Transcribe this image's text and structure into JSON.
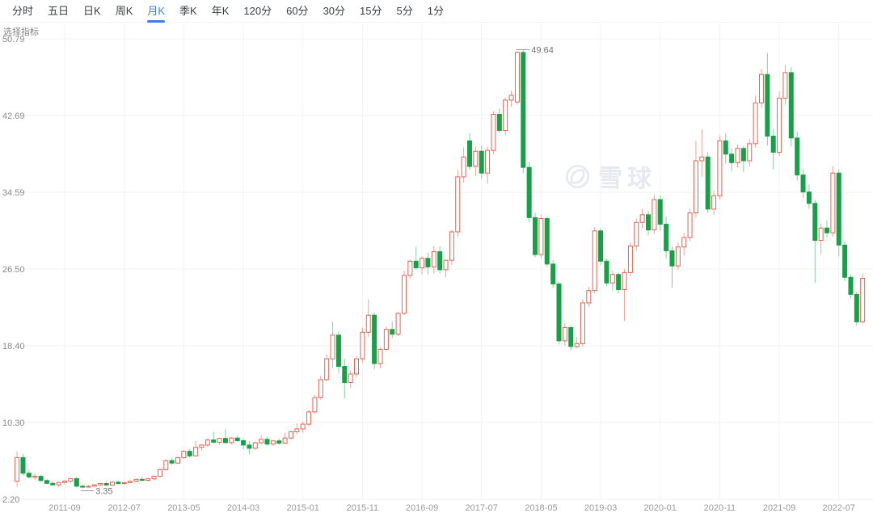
{
  "toolbar": {
    "items": [
      {
        "label": "分时",
        "active": false
      },
      {
        "label": "五日",
        "active": false
      },
      {
        "label": "日K",
        "active": false
      },
      {
        "label": "周K",
        "active": false
      },
      {
        "label": "月K",
        "active": true
      },
      {
        "label": "季K",
        "active": false
      },
      {
        "label": "年K",
        "active": false
      },
      {
        "label": "120分",
        "active": false
      },
      {
        "label": "60分",
        "active": false
      },
      {
        "label": "30分",
        "active": false
      },
      {
        "label": "15分",
        "active": false
      },
      {
        "label": "5分",
        "active": false
      },
      {
        "label": "1分",
        "active": false
      }
    ],
    "active_color": "#3d7bf0"
  },
  "indicator_label": "选择指标",
  "watermark": {
    "text": "雪球"
  },
  "chart_data": {
    "type": "candlestick",
    "period": "monthly",
    "y_ticks": [
      "50.79",
      "42.69",
      "34.59",
      "26.50",
      "18.40",
      "10.30",
      "2.20"
    ],
    "x_ticks": [
      {
        "index": 8,
        "label": "2011-09"
      },
      {
        "index": 18,
        "label": "2012-07"
      },
      {
        "index": 28,
        "label": "2013-05"
      },
      {
        "index": 38,
        "label": "2014-03"
      },
      {
        "index": 48,
        "label": "2015-01"
      },
      {
        "index": 58,
        "label": "2015-11"
      },
      {
        "index": 68,
        "label": "2016-09"
      },
      {
        "index": 78,
        "label": "2017-07"
      },
      {
        "index": 88,
        "label": "2018-05"
      },
      {
        "index": 98,
        "label": "2019-03"
      },
      {
        "index": 108,
        "label": "2020-01"
      },
      {
        "index": 118,
        "label": "2020-11"
      },
      {
        "index": 128,
        "label": "2021-09"
      },
      {
        "index": 138,
        "label": "2022-07"
      }
    ],
    "start_month": "2011-01",
    "annotations": {
      "high": "49.64",
      "low": "3.35"
    },
    "colors": {
      "up": "#e8604f",
      "up_wick": "#f2a096",
      "down": "#16a148",
      "down_wick": "#85cfa2",
      "grid": "#f2f2f2",
      "axis_text": "#8c8c8c",
      "annotation_text": "#737373"
    },
    "candles": [
      [
        4.1,
        7.25,
        3.5,
        6.6
      ],
      [
        6.6,
        6.95,
        4.7,
        4.95
      ],
      [
        4.95,
        5.35,
        4.4,
        4.55
      ],
      [
        4.55,
        4.95,
        4.25,
        4.62
      ],
      [
        4.62,
        4.8,
        4.05,
        4.18
      ],
      [
        4.18,
        4.35,
        3.78,
        3.88
      ],
      [
        3.88,
        4.12,
        3.62,
        3.72
      ],
      [
        3.72,
        4.05,
        3.48,
        3.97
      ],
      [
        3.97,
        4.22,
        3.72,
        4.12
      ],
      [
        4.12,
        4.48,
        3.92,
        4.38
      ],
      [
        4.38,
        4.52,
        3.48,
        3.58
      ],
      [
        3.58,
        3.76,
        3.35,
        3.52
      ],
      [
        3.52,
        3.7,
        3.42,
        3.58
      ],
      [
        3.58,
        3.82,
        3.46,
        3.72
      ],
      [
        3.72,
        3.96,
        3.56,
        3.86
      ],
      [
        3.86,
        4.06,
        3.62,
        3.7
      ],
      [
        3.7,
        4.1,
        3.6,
        4.0
      ],
      [
        4.0,
        4.16,
        3.76,
        3.86
      ],
      [
        3.86,
        4.06,
        3.72,
        3.96
      ],
      [
        3.96,
        4.2,
        3.86,
        4.1
      ],
      [
        4.1,
        4.4,
        4.0,
        4.3
      ],
      [
        4.3,
        4.56,
        4.1,
        4.2
      ],
      [
        4.2,
        4.46,
        4.06,
        4.36
      ],
      [
        4.36,
        4.72,
        4.22,
        4.62
      ],
      [
        4.62,
        5.48,
        4.52,
        5.32
      ],
      [
        5.32,
        6.42,
        5.22,
        6.28
      ],
      [
        6.28,
        6.52,
        5.82,
        6.02
      ],
      [
        6.02,
        6.72,
        5.92,
        6.58
      ],
      [
        6.58,
        7.42,
        6.48,
        7.26
      ],
      [
        7.26,
        7.48,
        6.62,
        6.78
      ],
      [
        6.78,
        8.32,
        6.72,
        7.68
      ],
      [
        7.68,
        8.02,
        7.32,
        7.92
      ],
      [
        7.92,
        8.62,
        7.72,
        8.46
      ],
      [
        8.46,
        9.32,
        8.12,
        8.22
      ],
      [
        8.22,
        8.72,
        7.92,
        8.62
      ],
      [
        8.62,
        9.62,
        8.02,
        8.18
      ],
      [
        8.18,
        8.78,
        7.98,
        8.66
      ],
      [
        8.66,
        8.92,
        8.22,
        8.38
      ],
      [
        8.38,
        8.62,
        7.42,
        7.92
      ],
      [
        7.92,
        8.32,
        6.95,
        7.58
      ],
      [
        7.58,
        8.26,
        7.42,
        8.16
      ],
      [
        8.16,
        8.92,
        8.02,
        8.52
      ],
      [
        8.52,
        8.76,
        7.86,
        8.02
      ],
      [
        8.02,
        8.46,
        7.82,
        8.36
      ],
      [
        8.36,
        8.62,
        7.96,
        8.12
      ],
      [
        8.12,
        9.22,
        8.02,
        8.66
      ],
      [
        8.66,
        9.42,
        8.52,
        9.32
      ],
      [
        9.32,
        10.22,
        9.02,
        9.62
      ],
      [
        9.62,
        10.42,
        9.22,
        10.12
      ],
      [
        10.12,
        11.62,
        9.92,
        11.42
      ],
      [
        11.42,
        13.22,
        11.22,
        12.92
      ],
      [
        12.92,
        15.22,
        12.72,
        14.82
      ],
      [
        14.82,
        17.52,
        14.62,
        17.02
      ],
      [
        17.02,
        20.96,
        16.02,
        19.52
      ],
      [
        19.52,
        19.92,
        15.52,
        16.22
      ],
      [
        16.22,
        17.02,
        12.82,
        14.52
      ],
      [
        14.52,
        15.82,
        13.92,
        15.42
      ],
      [
        15.42,
        17.32,
        15.02,
        17.02
      ],
      [
        17.02,
        20.32,
        16.62,
        19.82
      ],
      [
        19.82,
        23.32,
        19.32,
        21.62
      ],
      [
        21.62,
        21.92,
        15.92,
        16.52
      ],
      [
        16.52,
        18.22,
        16.02,
        18.02
      ],
      [
        18.02,
        20.42,
        17.82,
        20.12
      ],
      [
        20.12,
        20.92,
        19.22,
        19.62
      ],
      [
        19.62,
        21.92,
        19.42,
        21.82
      ],
      [
        21.82,
        26.32,
        21.62,
        25.82
      ],
      [
        25.82,
        27.52,
        25.42,
        27.32
      ],
      [
        27.32,
        28.82,
        26.42,
        26.62
      ],
      [
        26.62,
        27.82,
        25.92,
        27.62
      ],
      [
        27.62,
        28.22,
        25.92,
        26.72
      ],
      [
        26.72,
        28.92,
        26.02,
        28.32
      ],
      [
        28.32,
        28.92,
        26.02,
        26.42
      ],
      [
        26.42,
        27.52,
        25.62,
        27.42
      ],
      [
        27.42,
        30.62,
        26.92,
        30.42
      ],
      [
        30.42,
        36.92,
        29.92,
        36.22
      ],
      [
        36.22,
        39.32,
        35.62,
        38.32
      ],
      [
        40.02,
        40.82,
        36.92,
        37.32
      ],
      [
        37.32,
        39.42,
        36.32,
        38.92
      ],
      [
        38.92,
        39.52,
        36.02,
        36.62
      ],
      [
        36.62,
        39.42,
        35.52,
        39.02
      ],
      [
        39.02,
        43.12,
        38.62,
        42.82
      ],
      [
        42.82,
        43.42,
        40.82,
        41.12
      ],
      [
        41.12,
        44.62,
        40.62,
        44.32
      ],
      [
        44.32,
        45.32,
        43.62,
        44.82
      ],
      [
        44.12,
        49.5,
        43.82,
        49.35
      ],
      [
        49.35,
        49.64,
        36.62,
        37.22
      ],
      [
        37.22,
        37.82,
        31.42,
        31.92
      ],
      [
        31.92,
        32.42,
        27.72,
        28.02
      ],
      [
        28.02,
        32.22,
        27.62,
        31.82
      ],
      [
        31.82,
        32.02,
        26.72,
        27.02
      ],
      [
        27.02,
        27.42,
        24.52,
        24.92
      ],
      [
        24.92,
        25.12,
        18.52,
        18.92
      ],
      [
        18.92,
        20.82,
        18.42,
        20.32
      ],
      [
        20.32,
        20.52,
        17.92,
        18.32
      ],
      [
        18.32,
        19.32,
        18.12,
        18.62
      ],
      [
        18.62,
        23.32,
        18.32,
        22.92
      ],
      [
        22.92,
        24.62,
        22.52,
        24.22
      ],
      [
        24.22,
        30.92,
        23.92,
        30.52
      ],
      [
        30.52,
        30.82,
        26.92,
        27.32
      ],
      [
        27.32,
        27.62,
        24.72,
        25.02
      ],
      [
        25.02,
        26.32,
        24.22,
        25.92
      ],
      [
        25.92,
        26.12,
        23.92,
        24.32
      ],
      [
        24.32,
        26.52,
        21.02,
        26.12
      ],
      [
        26.12,
        29.32,
        25.72,
        28.92
      ],
      [
        28.92,
        31.82,
        28.42,
        31.42
      ],
      [
        31.42,
        32.82,
        30.82,
        32.22
      ],
      [
        32.22,
        32.62,
        30.02,
        30.62
      ],
      [
        30.62,
        34.32,
        30.22,
        33.82
      ],
      [
        33.82,
        34.22,
        30.52,
        31.22
      ],
      [
        31.22,
        32.02,
        27.62,
        28.42
      ],
      [
        28.42,
        28.92,
        24.52,
        26.82
      ],
      [
        26.82,
        29.32,
        26.42,
        28.82
      ],
      [
        28.82,
        30.32,
        27.92,
        29.82
      ],
      [
        29.82,
        32.92,
        29.42,
        32.42
      ],
      [
        32.42,
        40.02,
        31.92,
        37.92
      ],
      [
        37.92,
        41.22,
        36.22,
        38.32
      ],
      [
        38.32,
        38.82,
        32.42,
        32.82
      ],
      [
        32.82,
        34.82,
        32.22,
        34.22
      ],
      [
        34.22,
        40.62,
        33.82,
        40.02
      ],
      [
        40.02,
        40.82,
        37.62,
        38.62
      ],
      [
        38.62,
        39.22,
        36.82,
        37.72
      ],
      [
        37.72,
        39.62,
        37.22,
        39.22
      ],
      [
        39.22,
        39.52,
        36.72,
        37.92
      ],
      [
        37.92,
        40.22,
        37.32,
        39.72
      ],
      [
        39.72,
        44.82,
        39.32,
        44.02
      ],
      [
        44.02,
        47.62,
        43.52,
        47.02
      ],
      [
        47.02,
        49.3,
        39.52,
        40.52
      ],
      [
        40.52,
        41.22,
        37.02,
        38.82
      ],
      [
        38.82,
        45.22,
        38.42,
        44.52
      ],
      [
        44.52,
        48.02,
        43.82,
        47.22
      ],
      [
        47.22,
        47.82,
        39.42,
        40.32
      ],
      [
        40.32,
        41.02,
        35.82,
        36.42
      ],
      [
        36.42,
        37.02,
        34.02,
        34.62
      ],
      [
        34.62,
        35.42,
        32.82,
        33.42
      ],
      [
        33.42,
        33.82,
        25.02,
        29.52
      ],
      [
        29.52,
        31.32,
        28.02,
        30.82
      ],
      [
        30.82,
        31.62,
        29.82,
        30.32
      ],
      [
        30.32,
        37.32,
        29.92,
        36.62
      ],
      [
        36.62,
        37.02,
        27.82,
        29.02
      ],
      [
        29.02,
        29.42,
        25.22,
        25.62
      ],
      [
        25.62,
        25.92,
        23.42,
        23.82
      ],
      [
        23.82,
        24.12,
        20.52,
        20.92
      ],
      [
        20.92,
        26.02,
        20.72,
        25.52
      ]
    ]
  }
}
